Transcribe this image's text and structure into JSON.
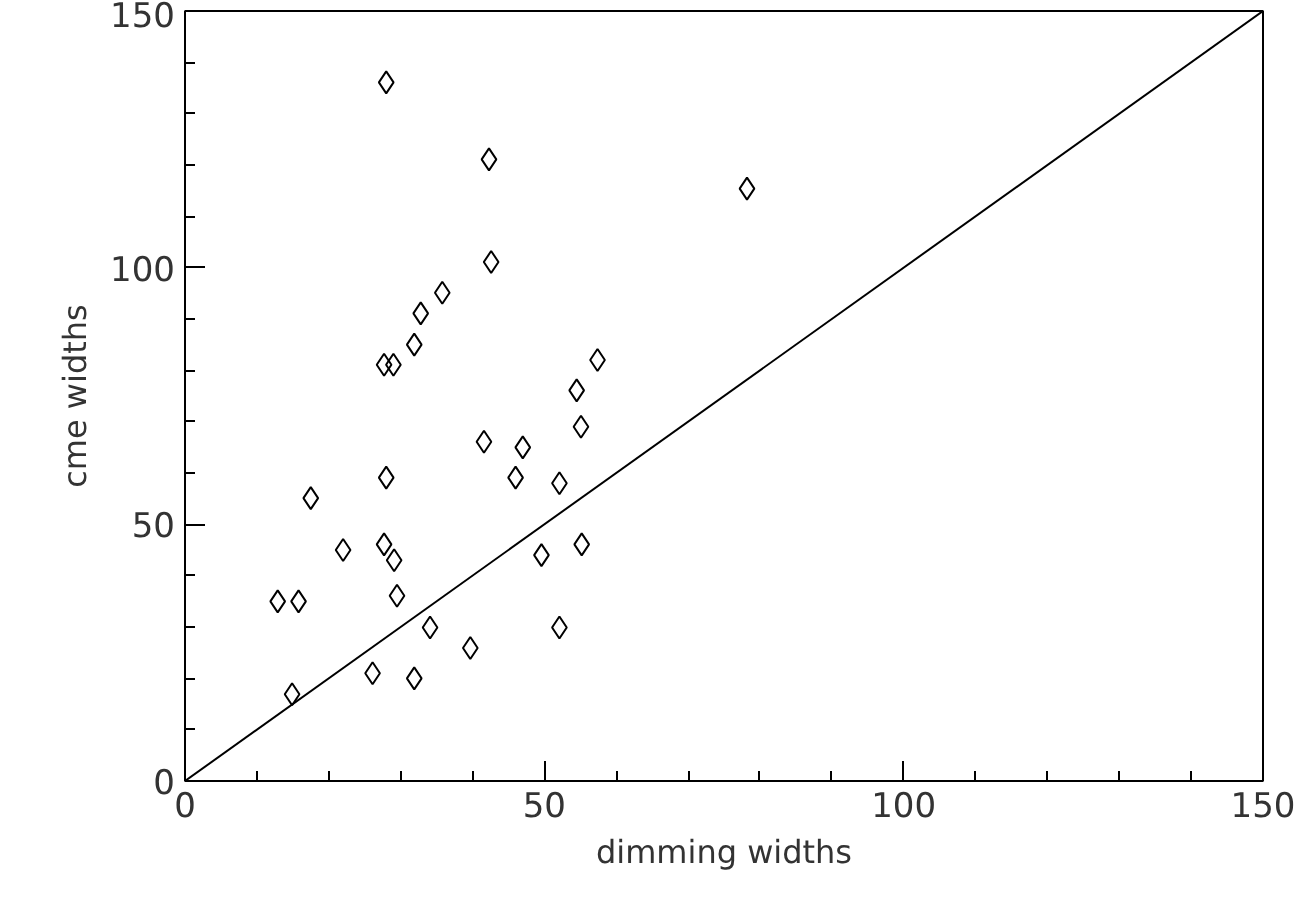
{
  "chart_data": {
    "type": "scatter",
    "xlabel": "dimming widths",
    "ylabel": "cme widths",
    "xlim": [
      0,
      150
    ],
    "ylim": [
      0,
      150
    ],
    "xticks": [
      0,
      50,
      100,
      150
    ],
    "yticks": [
      0,
      50,
      100,
      150
    ],
    "grid": false,
    "marker": "diamond",
    "series": [
      {
        "color": "#000000",
        "x": [
          28.0,
          42.3,
          42.6,
          35.8,
          32.8,
          31.9,
          27.7,
          29.0,
          57.4,
          54.5,
          55.1,
          41.6,
          47.0,
          28.0,
          46.0,
          52.1,
          17.5,
          22.0,
          27.7,
          29.1,
          55.2,
          49.6,
          12.9,
          15.8,
          29.5,
          34.1,
          52.1,
          39.7,
          26.1,
          31.9,
          14.9,
          78.2
        ],
        "values": [
          136.1,
          121.1,
          101.1,
          95.1,
          91.1,
          85.0,
          81.1,
          81.1,
          82.0,
          76.1,
          69.0,
          66.1,
          65.0,
          59.1,
          59.1,
          58.0,
          55.1,
          45.0,
          46.1,
          43.0,
          46.1,
          44.0,
          35.0,
          35.0,
          36.1,
          29.9,
          29.9,
          25.9,
          21.0,
          20.0,
          16.9,
          115.4
        ]
      },
      {
        "type": "line",
        "color": "#000000",
        "x": [
          0,
          150
        ],
        "values": [
          0,
          150
        ],
        "marker": "none",
        "line_style": "solid"
      }
    ]
  }
}
